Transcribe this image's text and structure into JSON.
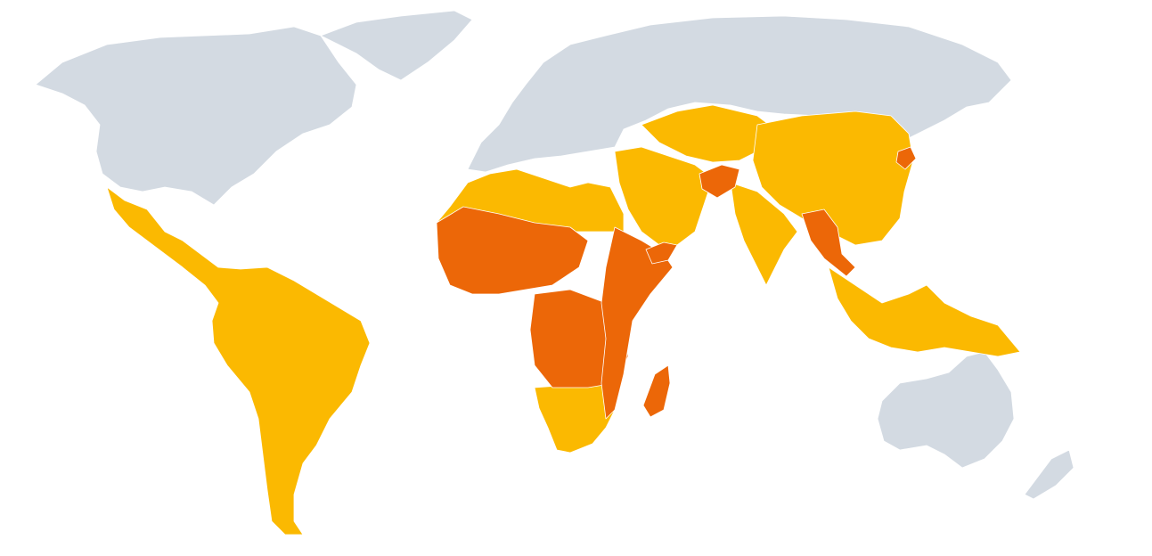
{
  "map": {
    "colors": {
      "background": "#ffffff",
      "no_data": "#d3dae2",
      "category_light": "#fbb901",
      "category_dark": "#ec6708",
      "border": "#ffffff"
    },
    "regions": [
      {
        "name": "north-america",
        "category": "no_data"
      },
      {
        "name": "greenland",
        "category": "no_data"
      },
      {
        "name": "europe-russia",
        "category": "no_data"
      },
      {
        "name": "australia",
        "category": "no_data"
      },
      {
        "name": "new-zealand",
        "category": "no_data"
      },
      {
        "name": "latin-america",
        "category": "category_light"
      },
      {
        "name": "north-africa",
        "category": "category_light"
      },
      {
        "name": "southern-africa",
        "category": "category_light"
      },
      {
        "name": "middle-east",
        "category": "category_light"
      },
      {
        "name": "central-asia",
        "category": "category_light"
      },
      {
        "name": "china",
        "category": "category_light"
      },
      {
        "name": "india",
        "category": "category_light"
      },
      {
        "name": "southeast-asia",
        "category": "category_light"
      },
      {
        "name": "west-africa",
        "category": "category_dark"
      },
      {
        "name": "central-africa",
        "category": "category_dark"
      },
      {
        "name": "east-africa",
        "category": "category_dark"
      },
      {
        "name": "madagascar",
        "category": "category_dark"
      },
      {
        "name": "afghanistan",
        "category": "category_dark"
      },
      {
        "name": "yemen",
        "category": "category_dark"
      },
      {
        "name": "myanmar",
        "category": "category_dark"
      },
      {
        "name": "north-korea",
        "category": "category_dark"
      }
    ]
  }
}
